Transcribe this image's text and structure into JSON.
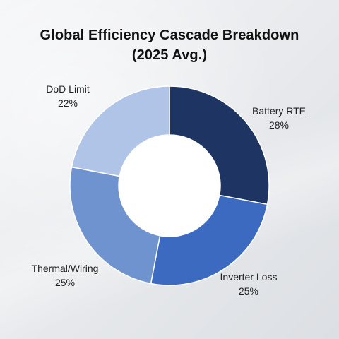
{
  "chart_data": {
    "type": "pie",
    "title": [
      "Global Efficiency Cascade Breakdown",
      "(2025 Avg.)"
    ],
    "categories": [
      "Battery RTE",
      "Inverter Loss",
      "Thermal/Wiring",
      "DoD Limit"
    ],
    "values": [
      28,
      25,
      25,
      22
    ],
    "value_labels": [
      "28%",
      "25%",
      "25%",
      "22%"
    ],
    "colors": [
      "#1e3563",
      "#3b6ac0",
      "#6f93cf",
      "#afc4e7"
    ],
    "donut": true
  }
}
